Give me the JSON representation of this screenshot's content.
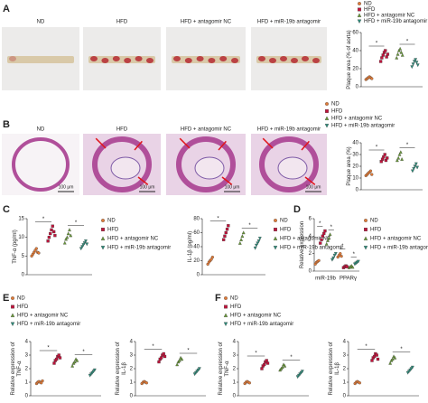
{
  "panels": [
    "A",
    "B",
    "C",
    "D",
    "E",
    "F"
  ],
  "groups": [
    {
      "name": "ND",
      "color": "#e07b39",
      "marker": "circle"
    },
    {
      "name": "HFD",
      "color": "#c0143c",
      "marker": "square"
    },
    {
      "name": "HFD + antagomir NC",
      "color": "#6a9a3a",
      "marker": "triangle-up"
    },
    {
      "name": "HFD + miR-19b antagomir",
      "color": "#2e8b7a",
      "marker": "triangle-down"
    }
  ],
  "images": {
    "labels": [
      "ND",
      "HFD",
      "HFD + antagomir NC",
      "HFD + miR-19b antagomir"
    ],
    "scale": "100 μm"
  },
  "chart_data": [
    {
      "type": "dotplot",
      "ylabel": [
        "Plaque area (% of aorta)"
      ],
      "ylim": [
        0,
        60
      ],
      "yticks": [
        0,
        20,
        40,
        60
      ],
      "annotations": [
        "*",
        "*"
      ],
      "series": [
        {
          "values": [
            8,
            9,
            10,
            11,
            10,
            9
          ]
        },
        {
          "values": [
            28,
            32,
            35,
            38,
            40,
            33,
            36
          ]
        },
        {
          "values": [
            32,
            36,
            40,
            42,
            38,
            35
          ]
        },
        {
          "values": [
            22,
            25,
            28,
            30,
            27,
            24
          ]
        }
      ]
    },
    {
      "type": "dotplot",
      "ylabel": [
        "Plaque area (%)"
      ],
      "ylim": [
        0,
        40
      ],
      "yticks": [
        0,
        10,
        20,
        30,
        40
      ],
      "annotations": [
        "*",
        "*"
      ],
      "series": [
        {
          "values": [
            12,
            13,
            14,
            15,
            16,
            13
          ]
        },
        {
          "values": [
            24,
            26,
            28,
            30,
            25,
            27
          ]
        },
        {
          "values": [
            25,
            27,
            30,
            32,
            26
          ]
        },
        {
          "values": [
            16,
            18,
            20,
            22,
            19
          ]
        }
      ]
    },
    {
      "type": "dotplot",
      "ylabel": [
        "TNF-α (pg/ml)"
      ],
      "ylim": [
        0,
        15
      ],
      "yticks": [
        0,
        5,
        10,
        15
      ],
      "annotations": [
        "*",
        "*"
      ],
      "series": [
        {
          "values": [
            5,
            5.5,
            6,
            6.5,
            7,
            6,
            5.8
          ]
        },
        {
          "values": [
            9,
            10,
            11,
            12,
            13,
            11.5,
            10.5
          ]
        },
        {
          "values": [
            8.5,
            9.5,
            10,
            11,
            12,
            10.5
          ]
        },
        {
          "values": [
            7,
            7.5,
            8,
            8.5,
            9,
            8.2
          ]
        }
      ]
    },
    {
      "type": "dotplot",
      "ylabel": [
        "IL-1β (pg/ml)"
      ],
      "ylim": [
        0,
        80
      ],
      "yticks": [
        0,
        20,
        40,
        60,
        80
      ],
      "annotations": [
        "*",
        "*"
      ],
      "series": [
        {
          "values": [
            15,
            18,
            20,
            22,
            25
          ]
        },
        {
          "values": [
            50,
            55,
            60,
            65,
            70
          ]
        },
        {
          "values": [
            45,
            50,
            55,
            60
          ]
        },
        {
          "values": [
            38,
            42,
            45,
            48,
            52
          ]
        }
      ]
    },
    {
      "type": "dotplot",
      "ylabel": [
        "Relative expression"
      ],
      "ylim": [
        0,
        6
      ],
      "yticks": [
        0,
        2,
        4,
        6
      ],
      "categories": [
        "miR-19b",
        "PPARγ"
      ],
      "annotations": [
        "*",
        "*",
        "*",
        "*"
      ],
      "series": [
        {
          "values": [
            [
              0.8,
              1,
              1.1,
              1.2
            ],
            [
              1.6,
              1.8,
              2,
              1.7
            ]
          ]
        },
        {
          "values": [
            [
              3.2,
              3.6,
              4,
              4.3,
              4.6
            ],
            [
              0.4,
              0.5,
              0.6,
              0.5
            ]
          ]
        },
        {
          "values": [
            [
              3.1,
              3.5,
              3.8,
              4.2
            ],
            [
              0.4,
              0.5,
              0.6,
              0.45
            ]
          ]
        },
        {
          "values": [
            [
              1.3,
              1.5,
              1.8,
              2
            ],
            [
              0.8,
              0.9,
              1,
              1.1
            ]
          ]
        }
      ]
    },
    {
      "type": "dotplot",
      "ylabel": [
        "Relative expression of",
        "TNF-α"
      ],
      "ylim": [
        0,
        4
      ],
      "yticks": [
        0,
        1,
        2,
        3,
        4
      ],
      "annotations": [
        "*",
        "*"
      ],
      "series": [
        {
          "values": [
            0.9,
            1,
            1.05,
            1,
            0.95,
            1.1
          ]
        },
        {
          "values": [
            2.4,
            2.6,
            2.7,
            2.9,
            3,
            2.8
          ]
        },
        {
          "values": [
            2.2,
            2.4,
            2.5,
            2.7,
            2.6
          ]
        },
        {
          "values": [
            1.5,
            1.6,
            1.7,
            1.8,
            1.9
          ]
        }
      ]
    },
    {
      "type": "dotplot",
      "ylabel": [
        "Relative expression of",
        "IL-1β"
      ],
      "ylim": [
        0,
        4
      ],
      "yticks": [
        0,
        1,
        2,
        3,
        4
      ],
      "annotations": [
        "*",
        "*"
      ],
      "series": [
        {
          "values": [
            0.9,
            1,
            1.05,
            1,
            0.95
          ]
        },
        {
          "values": [
            2.5,
            2.7,
            2.8,
            3,
            3.1,
            2.9
          ]
        },
        {
          "values": [
            2.3,
            2.5,
            2.6,
            2.8,
            2.7
          ]
        },
        {
          "values": [
            1.6,
            1.7,
            1.8,
            1.9,
            2
          ]
        }
      ]
    },
    {
      "type": "dotplot",
      "ylabel": [
        "Relative expression of",
        "TNF-α"
      ],
      "ylim": [
        0,
        4
      ],
      "yticks": [
        0,
        1,
        2,
        3,
        4
      ],
      "annotations": [
        "*",
        "*"
      ],
      "series": [
        {
          "values": [
            0.9,
            1,
            1.05,
            1,
            0.95
          ]
        },
        {
          "values": [
            2,
            2.2,
            2.3,
            2.5,
            2.6,
            2.4
          ]
        },
        {
          "values": [
            1.9,
            2,
            2.1,
            2.3,
            2.2
          ]
        },
        {
          "values": [
            1.4,
            1.5,
            1.6,
            1.7,
            1.8
          ]
        }
      ]
    },
    {
      "type": "dotplot",
      "ylabel": [
        "Relative expression of",
        "IL-1β"
      ],
      "ylim": [
        0,
        4
      ],
      "yticks": [
        0,
        1,
        2,
        3,
        4
      ],
      "annotations": [
        "*",
        "*"
      ],
      "series": [
        {
          "values": [
            0.9,
            1,
            1.05,
            1,
            0.95
          ]
        },
        {
          "values": [
            2.6,
            2.8,
            2.9,
            3.1,
            3,
            2.7
          ]
        },
        {
          "values": [
            2.4,
            2.6,
            2.7,
            2.9,
            2.8
          ]
        },
        {
          "values": [
            1.7,
            1.8,
            1.9,
            2,
            2.1
          ]
        }
      ]
    }
  ]
}
